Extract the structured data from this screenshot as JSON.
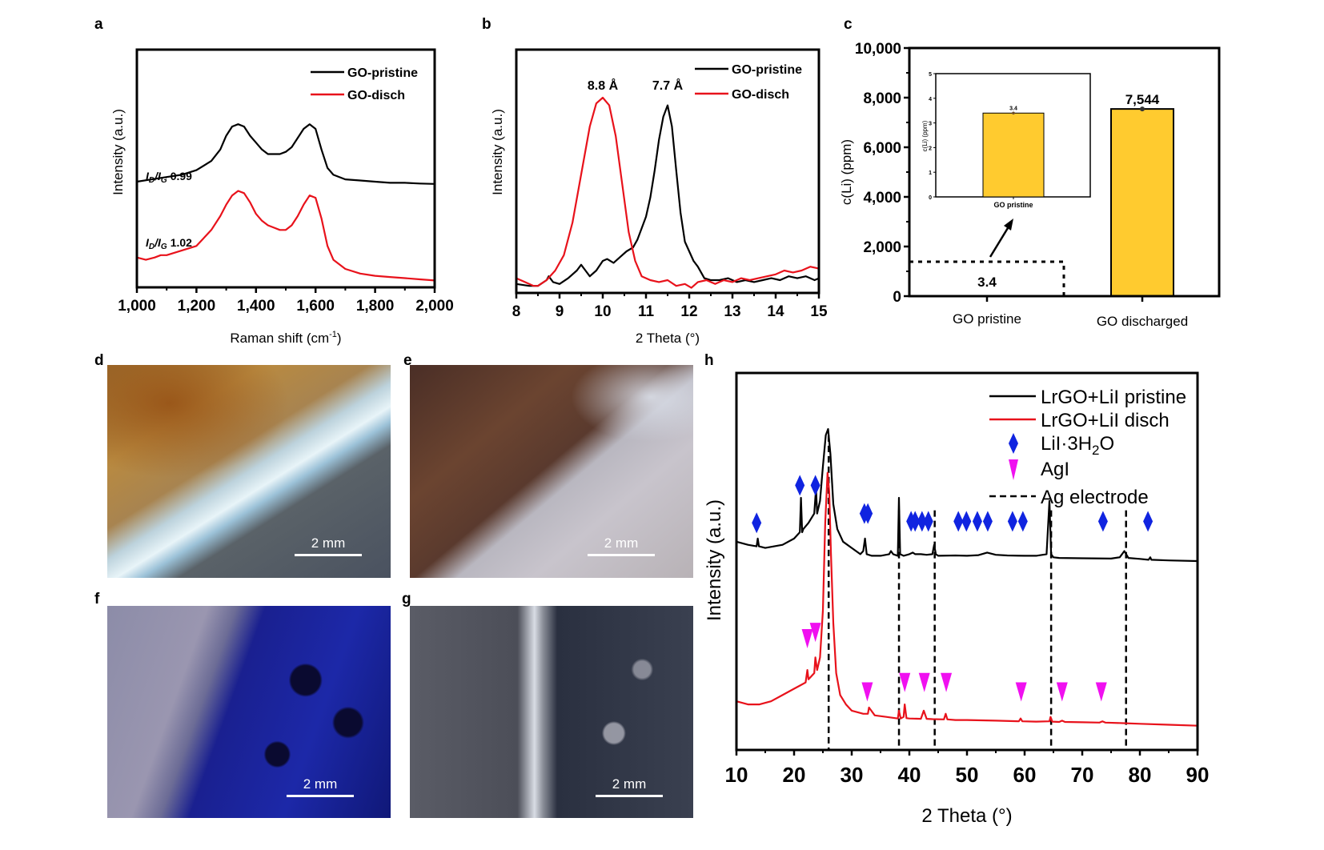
{
  "panel_labels": {
    "a": "a",
    "b": "b",
    "c": "c",
    "d": "d",
    "e": "e",
    "f": "f",
    "g": "g",
    "h": "h"
  },
  "colors": {
    "pristine": "#000000",
    "disch": "#e8121b",
    "bar": "#ffcb2f",
    "lii": "#1024e0",
    "agi": "#f010f0"
  },
  "chart_data": [
    {
      "id": "a",
      "type": "line",
      "title": "",
      "xlabel": "Raman shift (cm-1)",
      "xlabel_main": "Raman shift (cm",
      "xlabel_sup": "-1",
      "xlabel_end": ")",
      "ylabel": "Intensity (a.u.)",
      "xlim": [
        1000,
        2000
      ],
      "ylim": [
        0,
        1
      ],
      "xticks": [
        1000,
        1200,
        1400,
        1600,
        1800,
        2000
      ],
      "xtick_labels": [
        "1,000",
        "1,200",
        "1,400",
        "1,600",
        "1,800",
        "2,000"
      ],
      "legend": {
        "placement": "top-right",
        "entries": [
          "GO-pristine",
          "GO-disch"
        ]
      },
      "annotations": [
        {
          "series": "GO-pristine",
          "text_i": "I",
          "sub_d": "D",
          "slash": "/",
          "sub_g": "G",
          "value": "0.99"
        },
        {
          "series": "GO-disch",
          "text_i": "I",
          "sub_d": "D",
          "slash": "/",
          "sub_g": "G",
          "value": "1.02"
        }
      ],
      "series": [
        {
          "name": "GO-pristine",
          "x": [
            1000,
            1050,
            1100,
            1150,
            1200,
            1250,
            1280,
            1300,
            1320,
            1340,
            1360,
            1380,
            1400,
            1420,
            1440,
            1460,
            1480,
            1500,
            1520,
            1540,
            1560,
            1580,
            1600,
            1620,
            1640,
            1660,
            1700,
            1750,
            1800,
            1850,
            1900,
            1950,
            2000
          ],
          "y": [
            0.46,
            0.47,
            0.48,
            0.49,
            0.51,
            0.55,
            0.6,
            0.66,
            0.7,
            0.71,
            0.7,
            0.66,
            0.63,
            0.6,
            0.58,
            0.58,
            0.58,
            0.59,
            0.61,
            0.65,
            0.69,
            0.71,
            0.69,
            0.6,
            0.52,
            0.49,
            0.47,
            0.465,
            0.46,
            0.455,
            0.455,
            0.452,
            0.45
          ]
        },
        {
          "name": "GO-disch",
          "x": [
            1000,
            1030,
            1060,
            1080,
            1100,
            1150,
            1200,
            1250,
            1280,
            1300,
            1320,
            1340,
            1360,
            1380,
            1400,
            1420,
            1440,
            1460,
            1480,
            1500,
            1520,
            1540,
            1560,
            1580,
            1600,
            1620,
            1640,
            1660,
            1700,
            1750,
            1800,
            1850,
            1900,
            1950,
            2000
          ],
          "y": [
            0.13,
            0.12,
            0.13,
            0.14,
            0.14,
            0.16,
            0.18,
            0.25,
            0.31,
            0.36,
            0.4,
            0.42,
            0.41,
            0.37,
            0.32,
            0.29,
            0.27,
            0.26,
            0.25,
            0.25,
            0.27,
            0.31,
            0.36,
            0.4,
            0.39,
            0.3,
            0.18,
            0.12,
            0.08,
            0.06,
            0.05,
            0.045,
            0.04,
            0.035,
            0.03
          ]
        }
      ]
    },
    {
      "id": "b",
      "type": "line",
      "title": "",
      "xlabel": "2 Theta (°)",
      "ylabel": "Intensity (a.u.)",
      "xlim": [
        8,
        15
      ],
      "ylim": [
        0,
        1
      ],
      "xticks": [
        8,
        9,
        10,
        11,
        12,
        13,
        14,
        15
      ],
      "xtick_labels": [
        "8",
        "9",
        "10",
        "11",
        "12",
        "13",
        "14",
        "15"
      ],
      "legend": {
        "placement": "top-right",
        "entries": [
          "GO-pristine",
          "GO-disch"
        ]
      },
      "annotations": [
        {
          "text": "8.8 Å",
          "x": 10.0
        },
        {
          "text": "7.7 Å",
          "x": 11.5
        }
      ],
      "series": [
        {
          "name": "GO-pristine",
          "x": [
            8,
            8.3,
            8.5,
            8.7,
            8.75,
            8.85,
            9,
            9.2,
            9.4,
            9.5,
            9.6,
            9.7,
            9.85,
            10,
            10.1,
            10.25,
            10.4,
            10.55,
            10.7,
            10.8,
            10.9,
            11,
            11.1,
            11.2,
            11.3,
            11.4,
            11.5,
            11.6,
            11.7,
            11.8,
            11.9,
            12,
            12.1,
            12.2,
            12.35,
            12.5,
            12.7,
            12.9,
            13.1,
            13.3,
            13.5,
            13.7,
            13.9,
            14.1,
            14.3,
            14.5,
            14.7,
            14.9,
            15
          ],
          "y": [
            0.03,
            0.02,
            0.02,
            0.05,
            0.07,
            0.04,
            0.03,
            0.06,
            0.1,
            0.13,
            0.1,
            0.07,
            0.1,
            0.15,
            0.16,
            0.14,
            0.17,
            0.2,
            0.22,
            0.26,
            0.32,
            0.38,
            0.48,
            0.62,
            0.78,
            0.9,
            0.96,
            0.85,
            0.62,
            0.4,
            0.25,
            0.2,
            0.15,
            0.12,
            0.06,
            0.05,
            0.05,
            0.06,
            0.04,
            0.05,
            0.04,
            0.05,
            0.06,
            0.05,
            0.07,
            0.06,
            0.07,
            0.05,
            0.06
          ]
        },
        {
          "name": "GO-disch",
          "x": [
            8,
            8.2,
            8.4,
            8.5,
            8.7,
            8.9,
            9.1,
            9.3,
            9.5,
            9.7,
            9.85,
            10,
            10.15,
            10.3,
            10.45,
            10.6,
            10.75,
            10.9,
            11.1,
            11.3,
            11.5,
            11.7,
            11.9,
            12.05,
            12.2,
            12.4,
            12.6,
            12.8,
            13,
            13.2,
            13.4,
            13.6,
            13.8,
            14,
            14.2,
            14.4,
            14.6,
            14.8,
            15
          ],
          "y": [
            0.06,
            0.04,
            0.02,
            0.02,
            0.05,
            0.1,
            0.18,
            0.35,
            0.6,
            0.85,
            0.97,
            1.0,
            0.96,
            0.8,
            0.55,
            0.3,
            0.15,
            0.07,
            0.05,
            0.04,
            0.05,
            0.02,
            0.03,
            0.01,
            0.04,
            0.05,
            0.03,
            0.05,
            0.04,
            0.06,
            0.05,
            0.06,
            0.07,
            0.08,
            0.1,
            0.09,
            0.1,
            0.12,
            0.11
          ]
        }
      ]
    },
    {
      "id": "c",
      "type": "bar",
      "title": "",
      "xlabel": "",
      "ylabel": "c(Li) (ppm)",
      "ylim": [
        0,
        10000
      ],
      "yticks": [
        0,
        2000,
        4000,
        6000,
        8000,
        10000
      ],
      "ytick_labels": [
        "0",
        "2,000",
        "4,000",
        "6,000",
        "8,000",
        "10,000"
      ],
      "categories": [
        "GO pristine",
        "GO discharged"
      ],
      "values": [
        3.4,
        7544
      ],
      "data_labels": [
        "3.4",
        "7,544"
      ],
      "inset": {
        "type": "bar",
        "ylabel": "c(Li) (ppm)",
        "ylim": [
          0,
          5
        ],
        "yticks": [
          0,
          1,
          2,
          3,
          4,
          5
        ],
        "ytick_labels": [
          "0",
          "1",
          "2",
          "3",
          "4",
          "5"
        ],
        "categories": [
          "GO pristine"
        ],
        "values": [
          3.4
        ],
        "data_labels": [
          "3.4"
        ]
      }
    },
    {
      "id": "h",
      "type": "line",
      "title": "",
      "xlabel": "2 Theta (°)",
      "ylabel": "Intensity (a.u.)",
      "xlim": [
        10,
        90
      ],
      "ylim": [
        0,
        1
      ],
      "xticks": [
        10,
        20,
        30,
        40,
        50,
        60,
        70,
        80,
        90
      ],
      "xtick_labels": [
        "10",
        "20",
        "30",
        "40",
        "50",
        "60",
        "70",
        "80",
        "90"
      ],
      "legend": {
        "placement": "top-right",
        "entries": [
          "LrGO+LiI pristine",
          "LrGO+LiI disch",
          "LiI·3H2O",
          "AgI",
          "Ag electrode"
        ]
      },
      "legend_text": {
        "pristine": "LrGO+LiI pristine",
        "disch": "LrGO+LiI disch",
        "lii_main": "LiI·3H",
        "lii_sub": "2",
        "lii_end": "O",
        "agi": "AgI",
        "ag": "Ag electrode"
      },
      "series": [
        {
          "name": "LrGO+LiI pristine",
          "x": [
            10,
            12,
            13.5,
            13.7,
            13.9,
            15,
            18,
            20,
            21,
            21.2,
            21.4,
            21.6,
            22.5,
            23.5,
            23.8,
            24,
            24.5,
            25,
            25.5,
            25.9,
            26.3,
            26.8,
            27.5,
            28.5,
            30,
            31.5,
            32,
            32.3,
            32.6,
            33.5,
            35,
            36.5,
            36.8,
            37.2,
            38,
            38.2,
            38.4,
            39,
            40,
            40.6,
            41,
            42,
            43,
            44,
            44.3,
            44.6,
            45,
            48,
            50,
            52,
            53.5,
            55,
            57,
            60,
            62,
            63.8,
            64.3,
            64.6,
            65,
            66,
            70,
            75,
            76.5,
            77.3,
            78,
            80,
            81.5,
            81.8,
            82,
            85,
            90
          ],
          "y": [
            0.64,
            0.63,
            0.625,
            0.65,
            0.625,
            0.62,
            0.63,
            0.65,
            0.67,
            0.78,
            0.67,
            0.68,
            0.7,
            0.73,
            0.81,
            0.73,
            0.77,
            0.88,
            0.98,
            1.0,
            0.92,
            0.76,
            0.68,
            0.64,
            0.62,
            0.6,
            0.61,
            0.65,
            0.6,
            0.595,
            0.595,
            0.6,
            0.61,
            0.6,
            0.595,
            0.78,
            0.6,
            0.595,
            0.6,
            0.605,
            0.6,
            0.6,
            0.598,
            0.6,
            0.63,
            0.6,
            0.595,
            0.596,
            0.595,
            0.597,
            0.605,
            0.598,
            0.596,
            0.595,
            0.595,
            0.6,
            0.77,
            0.6,
            0.59,
            0.588,
            0.587,
            0.586,
            0.59,
            0.61,
            0.588,
            0.585,
            0.582,
            0.59,
            0.582,
            0.58,
            0.578
          ]
        },
        {
          "name": "LrGO+LiI disch",
          "x": [
            10,
            12,
            14,
            16,
            18,
            20,
            21,
            22,
            22.3,
            22.5,
            23,
            23.5,
            23.7,
            24,
            24.5,
            25,
            25.4,
            25.8,
            26.1,
            26.4,
            26.8,
            27.3,
            28,
            29,
            30,
            32,
            32.8,
            33,
            34,
            36,
            38,
            38.2,
            38.5,
            39,
            39.2,
            39.5,
            40,
            42,
            42.5,
            43,
            44,
            46,
            46.3,
            46.6,
            48,
            50,
            55,
            59,
            59.3,
            59.6,
            62,
            64.3,
            64.5,
            64.8,
            66,
            66.5,
            67,
            70,
            73,
            73.5,
            74,
            77,
            80,
            85,
            90
          ],
          "y": [
            0.13,
            0.12,
            0.12,
            0.13,
            0.15,
            0.17,
            0.18,
            0.19,
            0.23,
            0.2,
            0.21,
            0.22,
            0.27,
            0.23,
            0.27,
            0.42,
            0.7,
            0.86,
            0.8,
            0.6,
            0.38,
            0.22,
            0.15,
            0.12,
            0.1,
            0.09,
            0.09,
            0.11,
            0.085,
            0.08,
            0.075,
            0.1,
            0.075,
            0.08,
            0.12,
            0.076,
            0.075,
            0.074,
            0.1,
            0.074,
            0.073,
            0.072,
            0.09,
            0.072,
            0.07,
            0.07,
            0.068,
            0.066,
            0.075,
            0.066,
            0.065,
            0.066,
            0.08,
            0.065,
            0.064,
            0.068,
            0.064,
            0.063,
            0.062,
            0.066,
            0.062,
            0.06,
            0.058,
            0.055,
            0.052
          ]
        }
      ],
      "markers_lii": [
        13.5,
        21,
        23.7,
        32.2,
        32.8,
        40.3,
        41,
        42.2,
        43.3,
        48.5,
        49.9,
        51.8,
        53.6,
        57.9,
        59.7,
        73.6,
        81.4
      ],
      "markers_agi": [
        22.3,
        23.7,
        32.7,
        39.2,
        42.6,
        46.4,
        59.4,
        66.5,
        73.3
      ],
      "ag_electrode_lines": [
        26,
        38.2,
        44.4,
        64.6,
        77.6
      ]
    }
  ],
  "micrographs": [
    {
      "id": "d",
      "scale": "2 mm"
    },
    {
      "id": "e",
      "scale": "2 mm"
    },
    {
      "id": "f",
      "scale": "2 mm"
    },
    {
      "id": "g",
      "scale": "2 mm"
    }
  ]
}
